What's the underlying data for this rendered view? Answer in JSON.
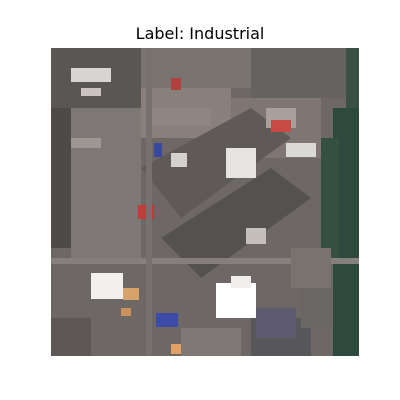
{
  "title": "Label: Industrial",
  "image": {
    "description_icon": "satellite-image-icon"
  }
}
